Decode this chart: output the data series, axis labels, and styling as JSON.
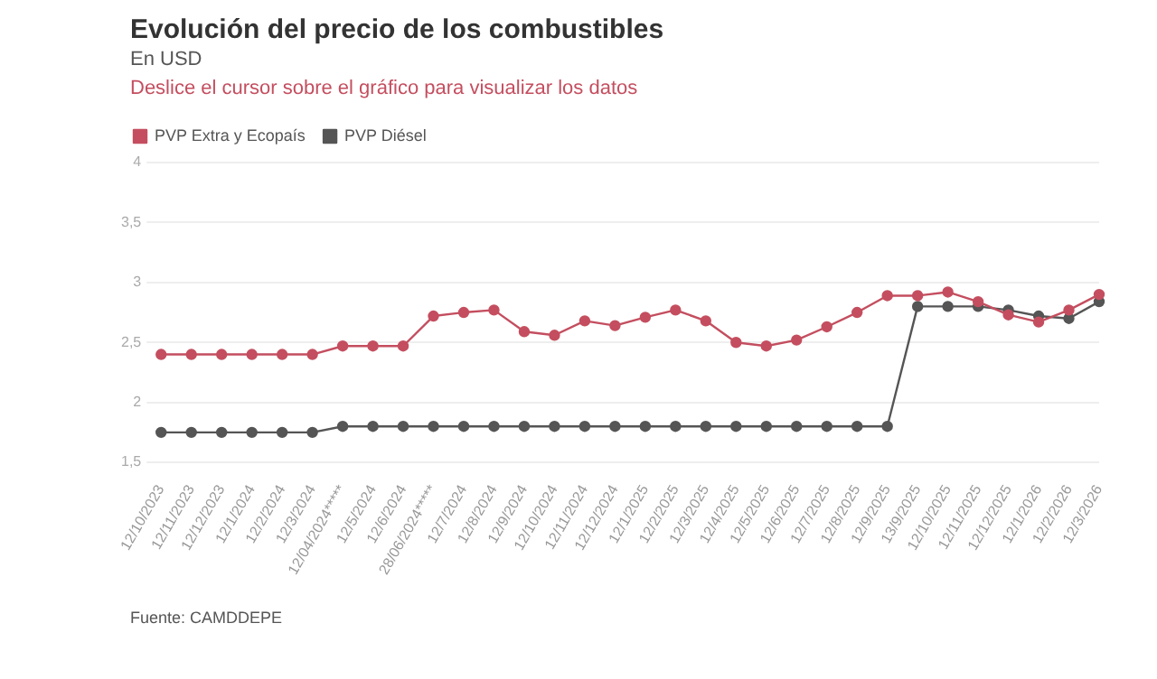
{
  "chart_data": {
    "type": "line",
    "title": "Evolución del precio de los combustibles",
    "subtitle": "En USD",
    "annotations": [
      "Deslice el cursor sobre el gráfico para visualizar los datos",
      "Fuente: CAMDDEPE"
    ],
    "categories": [
      "12/10/2023",
      "12/11/2023",
      "12/12/2023",
      "12/1/2024",
      "12/2/2024",
      "12/3/2024",
      "12/04/2024*****",
      "12/5/2024",
      "12/6/2024",
      "28/06/2024*****",
      "12/7/2024",
      "12/8/2024",
      "12/9/2024",
      "12/10/2024",
      "12/11/2024",
      "12/12/2024",
      "12/1/2025",
      "12/2/2025",
      "12/3/2025",
      "12/4/2025",
      "12/5/2025",
      "12/6/2025",
      "12/7/2025",
      "12/8/2025",
      "12/9/2025",
      "13/9/2025",
      "12/10/2025",
      "12/11/2025",
      "12/12/2025",
      "12/1/2026",
      "12/2/2026",
      "12/3/2026"
    ],
    "series": [
      {
        "name": "PVP Extra y Ecopaís",
        "color": "#c44e5f",
        "values": [
          2.4,
          2.4,
          2.4,
          2.4,
          2.4,
          2.4,
          2.47,
          2.47,
          2.47,
          2.72,
          2.75,
          2.77,
          2.59,
          2.56,
          2.68,
          2.64,
          2.71,
          2.77,
          2.68,
          2.5,
          2.47,
          2.52,
          2.63,
          2.75,
          2.89,
          2.89,
          2.92,
          2.84,
          2.73,
          2.67,
          2.77,
          2.9
        ]
      },
      {
        "name": "PVP Diésel",
        "color": "#555555",
        "values": [
          1.75,
          1.75,
          1.75,
          1.75,
          1.75,
          1.75,
          1.8,
          1.8,
          1.8,
          1.8,
          1.8,
          1.8,
          1.8,
          1.8,
          1.8,
          1.8,
          1.8,
          1.8,
          1.8,
          1.8,
          1.8,
          1.8,
          1.8,
          1.8,
          1.8,
          2.8,
          2.8,
          2.8,
          2.77,
          2.72,
          2.7,
          2.84
        ]
      }
    ],
    "ylim": [
      1.5,
      4
    ],
    "yticks": [
      {
        "value": 1.5,
        "label": "1,5"
      },
      2,
      {
        "value": 2.5,
        "label": "2,5"
      },
      3,
      {
        "value": 3.5,
        "label": "3,5"
      },
      4
    ],
    "grid": "y",
    "legend": "top left",
    "marker": "circle",
    "line_style": "solid"
  }
}
